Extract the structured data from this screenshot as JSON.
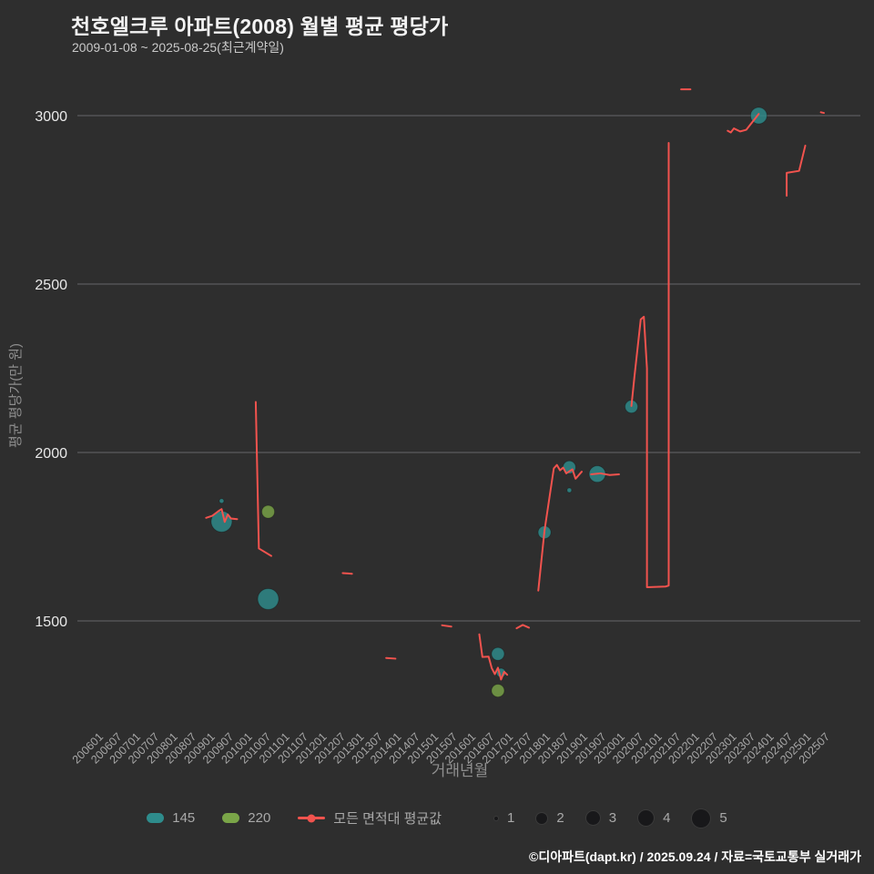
{
  "page": {
    "bg": "#2e2e2e"
  },
  "header": {
    "title": "천호엘크루 아파트(2008) 월별 평균 평당가",
    "subtitle": "2009-01-08 ~ 2025-08-25(최근계약일)"
  },
  "footer": {
    "text": "©디아파트(dapt.kr) / 2025.09.24 / 자료=국토교통부 실거래가"
  },
  "legend": {
    "series": [
      {
        "label": "145",
        "color": "#2e8c8c",
        "marker": "circle"
      },
      {
        "label": "220",
        "color": "#7aa548",
        "marker": "circle"
      },
      {
        "label": "모든 면적대 평균값",
        "color": "#f2534e",
        "marker": "line"
      }
    ],
    "sizes": [
      {
        "label": "1"
      },
      {
        "label": "2"
      },
      {
        "label": "3"
      },
      {
        "label": "4"
      },
      {
        "label": "5"
      }
    ],
    "size_dot_color": "#18181a"
  },
  "chart_data": {
    "type": "line",
    "subtype": "line-with-bubble-scatter",
    "title": "천호엘크루 아파트(2008) 월별 평균 평당가",
    "subtitle": "2009-01-08 ~ 2025-08-25(최근계약일)",
    "xlabel": "거래년월",
    "ylabel": "평균 평당가(만 원)",
    "grid": true,
    "legend_position": "bottom",
    "x_start": "2006-01",
    "x_end": "2025-07",
    "x_ticks": [
      "200601",
      "200607",
      "200701",
      "200707",
      "200801",
      "200807",
      "200901",
      "200907",
      "201001",
      "201007",
      "201101",
      "201107",
      "201201",
      "201207",
      "201301",
      "201307",
      "201401",
      "201407",
      "201501",
      "201507",
      "201601",
      "201607",
      "201701",
      "201707",
      "201801",
      "201807",
      "201901",
      "201907",
      "202001",
      "202007",
      "202101",
      "202107",
      "202201",
      "202207",
      "202301",
      "202307",
      "202401",
      "202407",
      "202501",
      "202507"
    ],
    "y_ticks": [
      1500,
      2000,
      2500,
      3000
    ],
    "ylim": [
      1180,
      3090
    ],
    "colors": {
      "grid": "#97979b",
      "y_tick_label": "#e9e9e9",
      "x_tick_label": "#a7a7a7",
      "axis_label": "#8f8f8f"
    },
    "line_series": {
      "name": "모든 면적대 평균값",
      "color": "#f2534e",
      "segments": [
        [
          [
            "2008-12",
            1806
          ],
          [
            "2009-02",
            1812
          ],
          [
            "2009-04",
            1826
          ],
          [
            "2009-05",
            1832
          ],
          [
            "2009-06",
            1794
          ],
          [
            "2009-07",
            1816
          ],
          [
            "2009-08",
            1804
          ],
          [
            "2009-10",
            1802
          ]
        ],
        [
          [
            "2010-04",
            2150
          ],
          [
            "2010-05",
            1715
          ],
          [
            "2010-09",
            1693
          ]
        ],
        [
          [
            "2012-08",
            1642
          ],
          [
            "2012-11",
            1640
          ]
        ],
        [
          [
            "2013-10",
            1390
          ],
          [
            "2014-01",
            1388
          ]
        ],
        [
          [
            "2015-04",
            1487
          ],
          [
            "2015-07",
            1483
          ]
        ],
        [
          [
            "2016-04",
            1460
          ],
          [
            "2016-05",
            1393
          ],
          [
            "2016-07",
            1394
          ],
          [
            "2016-08",
            1360
          ],
          [
            "2016-09",
            1342
          ],
          [
            "2016-10",
            1361
          ],
          [
            "2016-11",
            1326
          ],
          [
            "2016-12",
            1349
          ],
          [
            "2017-01",
            1340
          ]
        ],
        [
          [
            "2017-04",
            1478
          ],
          [
            "2017-06",
            1488
          ],
          [
            "2017-08",
            1480
          ]
        ],
        [
          [
            "2017-11",
            1590
          ],
          [
            "2018-01",
            1768
          ],
          [
            "2018-04",
            1953
          ],
          [
            "2018-05",
            1963
          ],
          [
            "2018-06",
            1947
          ],
          [
            "2018-07",
            1955
          ],
          [
            "2018-08",
            1938
          ],
          [
            "2018-10",
            1950
          ],
          [
            "2018-11",
            1922
          ],
          [
            "2019-01",
            1943
          ]
        ],
        [
          [
            "2019-04",
            1935
          ],
          [
            "2019-07",
            1938
          ],
          [
            "2019-10",
            1933
          ],
          [
            "2020-01",
            1935
          ]
        ],
        [
          [
            "2020-05",
            2138
          ],
          [
            "2020-06",
            2228
          ],
          [
            "2020-08",
            2395
          ],
          [
            "2020-09",
            2403
          ],
          [
            "2020-10",
            2250
          ],
          [
            "2020-10",
            1600
          ],
          [
            "2021-04",
            1602
          ],
          [
            "2021-05",
            1605
          ],
          [
            "2021-05",
            2919
          ]
        ],
        [
          [
            "2021-09",
            3078
          ],
          [
            "2021-12",
            3078
          ]
        ],
        [
          [
            "2022-12",
            2955
          ],
          [
            "2023-01",
            2950
          ],
          [
            "2023-02",
            2962
          ],
          [
            "2023-04",
            2953
          ],
          [
            "2023-06",
            2958
          ],
          [
            "2023-10",
            3005
          ]
        ],
        [
          [
            "2024-07",
            2762
          ],
          [
            "2024-07",
            2830
          ],
          [
            "2024-11",
            2836
          ],
          [
            "2025-01",
            2911
          ]
        ],
        [
          [
            "2025-06",
            3010
          ],
          [
            "2025-07",
            3008
          ]
        ]
      ]
    },
    "bubble_series": [
      {
        "name": "145",
        "color": "#2e8c8c",
        "points": [
          [
            "2009-05",
            1795,
            5
          ],
          [
            "2009-05",
            1856,
            1
          ],
          [
            "2010-08",
            1565,
            5
          ],
          [
            "2016-10",
            1402,
            3
          ],
          [
            "2016-11",
            1346,
            2
          ],
          [
            "2018-01",
            1763,
            3
          ],
          [
            "2018-09",
            1956,
            3
          ],
          [
            "2018-09",
            1888,
            1
          ],
          [
            "2019-06",
            1936,
            4
          ],
          [
            "2020-05",
            2136,
            3
          ],
          [
            "2023-10",
            3000,
            4
          ]
        ]
      },
      {
        "name": "220",
        "color": "#7aa548",
        "points": [
          [
            "2010-08",
            1824,
            3
          ],
          [
            "2016-10",
            1293,
            3
          ]
        ]
      }
    ],
    "size_legend": [
      1,
      2,
      3,
      4,
      5
    ]
  }
}
